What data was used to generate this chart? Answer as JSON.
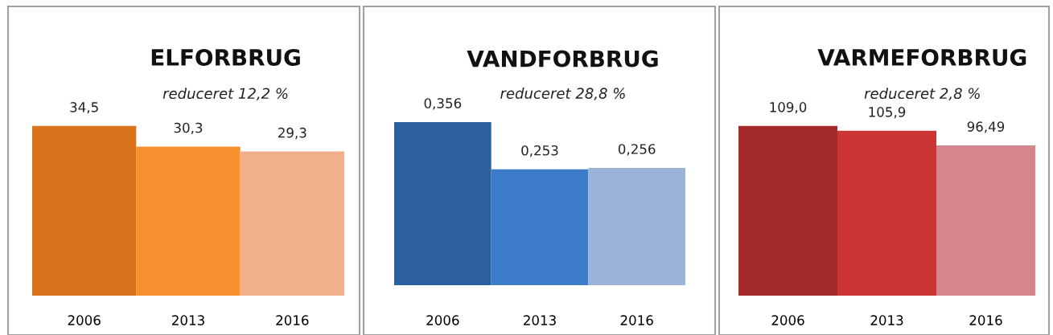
{
  "chart_data": [
    {
      "type": "bar",
      "title": "ELFORBRUG",
      "subtitle": "reduceret 12,2 %",
      "categories": [
        "2006",
        "2013",
        "2016"
      ],
      "values": [
        34.5,
        30.3,
        29.3
      ],
      "colors": [
        "#d9731c",
        "#f7902f",
        "#f2b08a"
      ],
      "value_labels": [
        "34,5",
        "30,3",
        "29,3"
      ],
      "tick_labels": "x"
    },
    {
      "type": "bar",
      "title": "VANDFORBRUG",
      "subtitle": "reduceret 28,8 %",
      "categories": [
        "2006",
        "2013",
        "2016"
      ],
      "values": [
        0.356,
        0.253,
        0.256
      ],
      "colors": [
        "#2c5f9e",
        "#3d7cc9",
        "#9cb3d9"
      ],
      "value_labels": [
        "0,356",
        "0,253",
        "0,256"
      ],
      "tick_labels": "x"
    },
    {
      "type": "bar",
      "title": "VARMEFORBRUG",
      "subtitle": "reduceret 2,8 %",
      "categories": [
        "2006",
        "2013",
        "2016"
      ],
      "values": [
        109.0,
        105.9,
        96.49
      ],
      "colors": [
        "#a52a2a",
        "#cc3535",
        "#d4868c"
      ],
      "value_labels": [
        "109,0",
        "105,9",
        "96,49"
      ],
      "tick_labels": "x"
    }
  ]
}
